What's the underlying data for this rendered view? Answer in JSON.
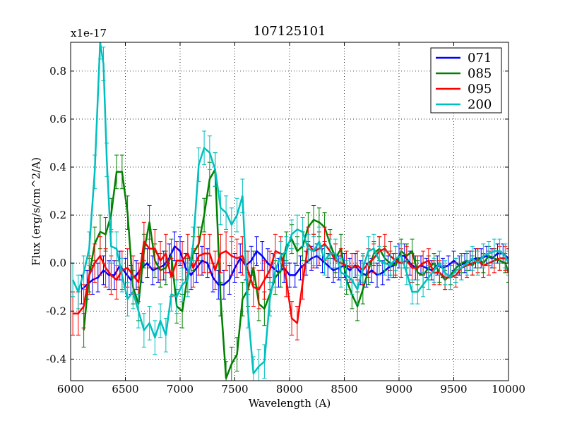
{
  "chart_data": {
    "type": "line",
    "title": "107125101",
    "xlabel": "Wavelength (A)",
    "ylabel": "Flux (erg/s/cm^2/A)",
    "y_offset_label": "x1e-17",
    "xlim": [
      6000,
      10000
    ],
    "ylim": [
      -0.49,
      0.92
    ],
    "xticks": [
      6000,
      6500,
      7000,
      7500,
      8000,
      8500,
      9000,
      9500,
      10000
    ],
    "xtick_labels": [
      "6000",
      "6500",
      "7000",
      "7500",
      "8000",
      "8500",
      "9000",
      "9500",
      "10000"
    ],
    "yticks": [
      -0.4,
      -0.2,
      0.0,
      0.2,
      0.4,
      0.6,
      0.8
    ],
    "ytick_labels": [
      "-0.4",
      "-0.2",
      "0.0",
      "0.2",
      "0.4",
      "0.6",
      "0.8"
    ],
    "grid": true,
    "legend_position": "top-right",
    "series": [
      {
        "name": "071",
        "color": "#0000ff",
        "x": [
          6100,
          6150,
          6200,
          6250,
          6300,
          6350,
          6400,
          6450,
          6500,
          6550,
          6600,
          6650,
          6700,
          6750,
          6800,
          6850,
          6900,
          6950,
          7000,
          7050,
          7100,
          7150,
          7200,
          7250,
          7300,
          7350,
          7400,
          7450,
          7500,
          7550,
          7600,
          7650,
          7700,
          7750,
          7800,
          7850,
          7900,
          7950,
          8000,
          8050,
          8100,
          8150,
          8200,
          8250,
          8300,
          8350,
          8400,
          8450,
          8500,
          8550,
          8600,
          8650,
          8700,
          8750,
          8800,
          8850,
          8900,
          8950,
          9000,
          9050,
          9100,
          9150,
          9200,
          9250,
          9300,
          9350,
          9400,
          9450,
          9500,
          9550,
          9600,
          9650,
          9700,
          9750,
          9800,
          9850,
          9900,
          9950,
          10000
        ],
        "y": [
          -0.11,
          -0.09,
          -0.07,
          -0.06,
          -0.03,
          -0.05,
          -0.05,
          -0.01,
          -0.04,
          -0.07,
          -0.05,
          -0.02,
          0.0,
          -0.03,
          -0.02,
          -0.01,
          0.02,
          0.07,
          0.05,
          -0.02,
          -0.05,
          -0.02,
          0.01,
          0.0,
          -0.06,
          -0.09,
          -0.09,
          -0.07,
          -0.02,
          0.02,
          -0.01,
          0.01,
          0.05,
          0.03,
          0.0,
          -0.02,
          -0.04,
          -0.02,
          -0.05,
          -0.05,
          -0.02,
          0.0,
          0.02,
          0.03,
          0.01,
          -0.01,
          -0.03,
          -0.02,
          -0.01,
          -0.03,
          -0.01,
          -0.04,
          -0.05,
          -0.03,
          -0.05,
          -0.04,
          -0.02,
          -0.01,
          0.03,
          0.03,
          0.0,
          -0.02,
          -0.01,
          -0.02,
          -0.03,
          -0.01,
          -0.02,
          -0.01,
          0.01,
          -0.01,
          0.0,
          0.01,
          0.02,
          0.02,
          0.03,
          0.02,
          0.04,
          0.04,
          0.02
        ],
        "err": [
          0.06,
          0.06,
          0.06,
          0.06,
          0.06,
          0.06,
          0.06,
          0.06,
          0.06,
          0.06,
          0.06,
          0.06,
          0.06,
          0.06,
          0.06,
          0.06,
          0.06,
          0.06,
          0.06,
          0.06,
          0.06,
          0.06,
          0.06,
          0.06,
          0.06,
          0.06,
          0.06,
          0.06,
          0.06,
          0.06,
          0.06,
          0.06,
          0.06,
          0.06,
          0.06,
          0.06,
          0.06,
          0.06,
          0.05,
          0.05,
          0.05,
          0.05,
          0.05,
          0.05,
          0.05,
          0.05,
          0.05,
          0.05,
          0.05,
          0.05,
          0.05,
          0.05,
          0.05,
          0.05,
          0.05,
          0.05,
          0.05,
          0.05,
          0.05,
          0.05,
          0.05,
          0.05,
          0.04,
          0.04,
          0.04,
          0.04,
          0.04,
          0.04,
          0.04,
          0.04,
          0.04,
          0.04,
          0.04,
          0.04,
          0.04,
          0.04,
          0.04,
          0.04,
          0.04
        ]
      },
      {
        "name": "085",
        "color": "#008000",
        "x": [
          6120,
          6170,
          6220,
          6270,
          6320,
          6370,
          6420,
          6470,
          6520,
          6570,
          6620,
          6670,
          6720,
          6770,
          6820,
          6870,
          6920,
          6970,
          7020,
          7070,
          7120,
          7170,
          7220,
          7270,
          7320,
          7370,
          7420,
          7470,
          7520,
          7570,
          7620,
          7670,
          7720,
          7770,
          7820,
          7870,
          7920,
          7970,
          8020,
          8070,
          8120,
          8170,
          8220,
          8270,
          8320,
          8370,
          8420,
          8470,
          8520,
          8570,
          8620,
          8670,
          8720,
          8770,
          8820,
          8870,
          8920,
          8970,
          9020,
          9070,
          9120,
          9170,
          9220,
          9270,
          9320,
          9370,
          9420,
          9470,
          9520,
          9570,
          9620,
          9670,
          9720,
          9770,
          9820,
          9870,
          9920,
          9970,
          10000
        ],
        "y": [
          -0.28,
          -0.05,
          0.08,
          0.13,
          0.12,
          0.2,
          0.38,
          0.38,
          0.21,
          -0.1,
          -0.17,
          0.05,
          0.17,
          0.01,
          -0.03,
          -0.02,
          0.03,
          -0.18,
          -0.2,
          -0.05,
          0.04,
          0.08,
          0.2,
          0.35,
          0.39,
          -0.15,
          -0.48,
          -0.42,
          -0.38,
          -0.15,
          -0.11,
          -0.02,
          -0.17,
          -0.19,
          -0.13,
          -0.06,
          -0.03,
          0.07,
          0.1,
          0.05,
          0.07,
          0.15,
          0.18,
          0.17,
          0.15,
          0.08,
          0.02,
          0.06,
          -0.07,
          -0.13,
          -0.18,
          -0.11,
          -0.03,
          0.04,
          0.06,
          0.02,
          0.0,
          -0.01,
          0.05,
          0.03,
          0.05,
          -0.04,
          -0.05,
          -0.02,
          0.0,
          -0.04,
          -0.07,
          -0.05,
          -0.02,
          0.0,
          0.01,
          -0.01,
          0.02,
          0.0,
          0.03,
          0.02,
          0.01,
          0.0,
          -0.04
        ],
        "err": [
          0.07,
          0.07,
          0.07,
          0.07,
          0.07,
          0.07,
          0.07,
          0.07,
          0.07,
          0.07,
          0.07,
          0.07,
          0.07,
          0.07,
          0.07,
          0.07,
          0.07,
          0.07,
          0.07,
          0.07,
          0.07,
          0.07,
          0.07,
          0.07,
          0.07,
          0.07,
          0.07,
          0.07,
          0.07,
          0.07,
          0.07,
          0.07,
          0.07,
          0.07,
          0.07,
          0.07,
          0.07,
          0.06,
          0.06,
          0.06,
          0.06,
          0.06,
          0.06,
          0.06,
          0.06,
          0.06,
          0.06,
          0.06,
          0.06,
          0.06,
          0.06,
          0.06,
          0.06,
          0.05,
          0.05,
          0.05,
          0.05,
          0.05,
          0.05,
          0.05,
          0.05,
          0.05,
          0.05,
          0.05,
          0.04,
          0.04,
          0.04,
          0.04,
          0.04,
          0.04,
          0.04,
          0.04,
          0.04,
          0.04,
          0.04,
          0.04,
          0.04,
          0.04,
          0.04
        ]
      },
      {
        "name": "095",
        "color": "#ff0000",
        "x": [
          6020,
          6070,
          6120,
          6170,
          6220,
          6270,
          6320,
          6370,
          6420,
          6470,
          6520,
          6570,
          6620,
          6670,
          6720,
          6770,
          6820,
          6870,
          6920,
          6970,
          7020,
          7070,
          7120,
          7170,
          7220,
          7270,
          7320,
          7370,
          7420,
          7470,
          7520,
          7570,
          7620,
          7670,
          7720,
          7770,
          7820,
          7870,
          7920,
          7970,
          8020,
          8070,
          8120,
          8170,
          8220,
          8270,
          8320,
          8370,
          8420,
          8470,
          8520,
          8570,
          8620,
          8670,
          8720,
          8770,
          8820,
          8870,
          8920,
          8970,
          9020,
          9070,
          9120,
          9170,
          9220,
          9270,
          9320,
          9370,
          9420,
          9470,
          9520,
          9570,
          9620,
          9670,
          9720,
          9770,
          9820,
          9870,
          9920,
          9970,
          10000
        ],
        "y": [
          -0.21,
          -0.21,
          -0.18,
          -0.05,
          0.0,
          0.03,
          -0.02,
          -0.05,
          -0.07,
          -0.03,
          -0.02,
          -0.05,
          -0.08,
          0.09,
          0.06,
          0.06,
          0.01,
          0.04,
          -0.06,
          0.01,
          0.01,
          0.04,
          -0.02,
          0.03,
          0.04,
          0.04,
          -0.03,
          0.04,
          0.05,
          0.03,
          0.02,
          0.03,
          -0.03,
          -0.1,
          -0.11,
          -0.07,
          -0.03,
          0.05,
          0.04,
          -0.07,
          -0.23,
          -0.25,
          -0.08,
          0.08,
          0.05,
          0.06,
          0.08,
          0.05,
          0.01,
          0.0,
          -0.01,
          -0.02,
          -0.01,
          -0.03,
          0.0,
          0.02,
          0.05,
          0.06,
          0.03,
          0.01,
          0.0,
          0.01,
          -0.02,
          -0.02,
          0.0,
          0.01,
          -0.04,
          -0.04,
          -0.06,
          -0.06,
          -0.05,
          -0.02,
          -0.01,
          0.0,
          0.01,
          -0.01,
          0.0,
          0.01,
          0.02,
          0.02,
          0.01
        ],
        "err": [
          0.09,
          0.09,
          0.09,
          0.08,
          0.08,
          0.08,
          0.08,
          0.08,
          0.08,
          0.08,
          0.08,
          0.08,
          0.08,
          0.08,
          0.08,
          0.08,
          0.08,
          0.08,
          0.08,
          0.08,
          0.08,
          0.08,
          0.08,
          0.08,
          0.08,
          0.08,
          0.08,
          0.08,
          0.08,
          0.08,
          0.08,
          0.08,
          0.08,
          0.08,
          0.08,
          0.08,
          0.08,
          0.07,
          0.07,
          0.07,
          0.07,
          0.07,
          0.07,
          0.07,
          0.07,
          0.07,
          0.07,
          0.07,
          0.07,
          0.06,
          0.06,
          0.06,
          0.06,
          0.06,
          0.06,
          0.06,
          0.06,
          0.06,
          0.06,
          0.06,
          0.06,
          0.06,
          0.06,
          0.05,
          0.05,
          0.05,
          0.05,
          0.05,
          0.05,
          0.05,
          0.05,
          0.05,
          0.05,
          0.05,
          0.05,
          0.05,
          0.05,
          0.05,
          0.05,
          0.05,
          0.05
        ]
      },
      {
        "name": "200",
        "color": "#00bfbf",
        "x": [
          6020,
          6070,
          6120,
          6170,
          6220,
          6270,
          6300,
          6330,
          6370,
          6420,
          6470,
          6520,
          6570,
          6620,
          6670,
          6720,
          6770,
          6820,
          6870,
          6920,
          6970,
          7020,
          7070,
          7120,
          7170,
          7220,
          7270,
          7320,
          7370,
          7420,
          7470,
          7520,
          7570,
          7620,
          7670,
          7720,
          7770,
          7820,
          7870,
          7920,
          7970,
          8020,
          8070,
          8120,
          8170,
          8220,
          8270,
          8320,
          8370,
          8420,
          8470,
          8520,
          8570,
          8620,
          8670,
          8720,
          8770,
          8820,
          8870,
          8920,
          8970,
          9020,
          9070,
          9120,
          9170,
          9220,
          9270,
          9320,
          9370,
          9420,
          9470,
          9520,
          9570,
          9620,
          9670,
          9720,
          9770,
          9820,
          9870,
          9920,
          9970,
          10000
        ],
        "y": [
          -0.07,
          -0.12,
          -0.04,
          0.06,
          0.38,
          0.92,
          0.83,
          0.43,
          0.07,
          0.06,
          -0.05,
          -0.15,
          -0.12,
          -0.2,
          -0.28,
          -0.25,
          -0.31,
          -0.24,
          -0.3,
          -0.13,
          -0.14,
          -0.09,
          -0.07,
          0.08,
          0.41,
          0.48,
          0.46,
          0.39,
          0.23,
          0.21,
          0.16,
          0.2,
          0.28,
          -0.2,
          -0.46,
          -0.43,
          -0.41,
          -0.15,
          -0.03,
          0.03,
          0.05,
          0.12,
          0.14,
          0.13,
          0.06,
          0.05,
          0.09,
          0.01,
          0.04,
          0.04,
          -0.04,
          -0.05,
          -0.07,
          -0.11,
          -0.02,
          0.05,
          0.06,
          0.01,
          0.0,
          -0.01,
          0.02,
          0.03,
          -0.04,
          -0.12,
          -0.12,
          -0.09,
          -0.06,
          -0.03,
          0.0,
          -0.04,
          -0.06,
          -0.03,
          -0.02,
          0.0,
          0.02,
          0.0,
          0.03,
          0.04,
          0.05,
          0.05,
          0.03,
          0.0
        ],
        "err": [
          0.07,
          0.07,
          0.07,
          0.07,
          0.07,
          0.07,
          0.07,
          0.07,
          0.07,
          0.07,
          0.07,
          0.07,
          0.07,
          0.07,
          0.07,
          0.07,
          0.07,
          0.07,
          0.07,
          0.07,
          0.07,
          0.07,
          0.07,
          0.07,
          0.07,
          0.07,
          0.07,
          0.07,
          0.07,
          0.07,
          0.07,
          0.07,
          0.07,
          0.07,
          0.07,
          0.07,
          0.07,
          0.07,
          0.07,
          0.06,
          0.06,
          0.06,
          0.06,
          0.06,
          0.06,
          0.06,
          0.06,
          0.06,
          0.06,
          0.06,
          0.06,
          0.06,
          0.06,
          0.06,
          0.06,
          0.06,
          0.06,
          0.06,
          0.05,
          0.05,
          0.05,
          0.05,
          0.05,
          0.05,
          0.05,
          0.05,
          0.05,
          0.05,
          0.05,
          0.05,
          0.05,
          0.05,
          0.05,
          0.05,
          0.05,
          0.05,
          0.05,
          0.05,
          0.05,
          0.05,
          0.05,
          0.05
        ]
      }
    ]
  }
}
